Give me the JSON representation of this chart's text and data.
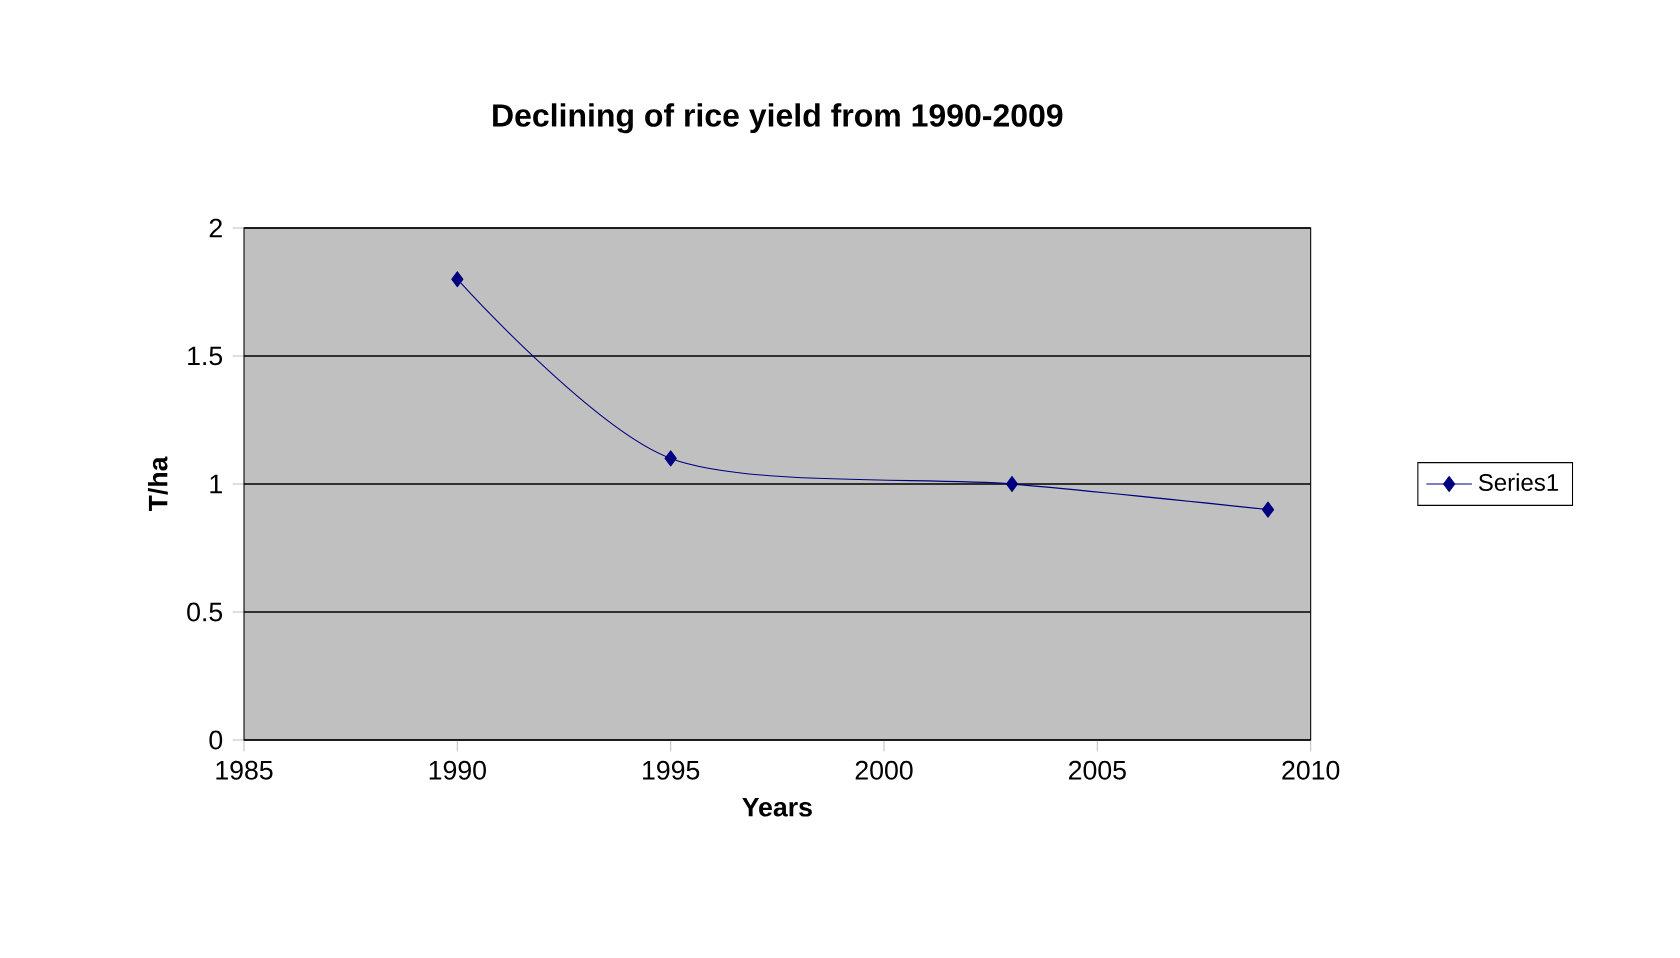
{
  "chart_data": {
    "type": "line",
    "title": "Declining of rice yield from 1990-2009",
    "xlabel": "Years",
    "ylabel": "T/ha",
    "x": [
      1990,
      1995,
      2003,
      2009
    ],
    "series": [
      {
        "name": "Series1",
        "color": "#000080",
        "values": [
          1.8,
          1.1,
          1.0,
          0.9
        ]
      }
    ],
    "xlim": [
      1985,
      2010
    ],
    "xticks": [
      1985,
      1990,
      1995,
      2000,
      2005,
      2010
    ],
    "ylim": [
      0,
      2
    ],
    "yticks": [
      0,
      0.5,
      1,
      1.5,
      2
    ],
    "grid": "y",
    "legend": "right",
    "marker": "diamond",
    "line_style": "solid"
  }
}
